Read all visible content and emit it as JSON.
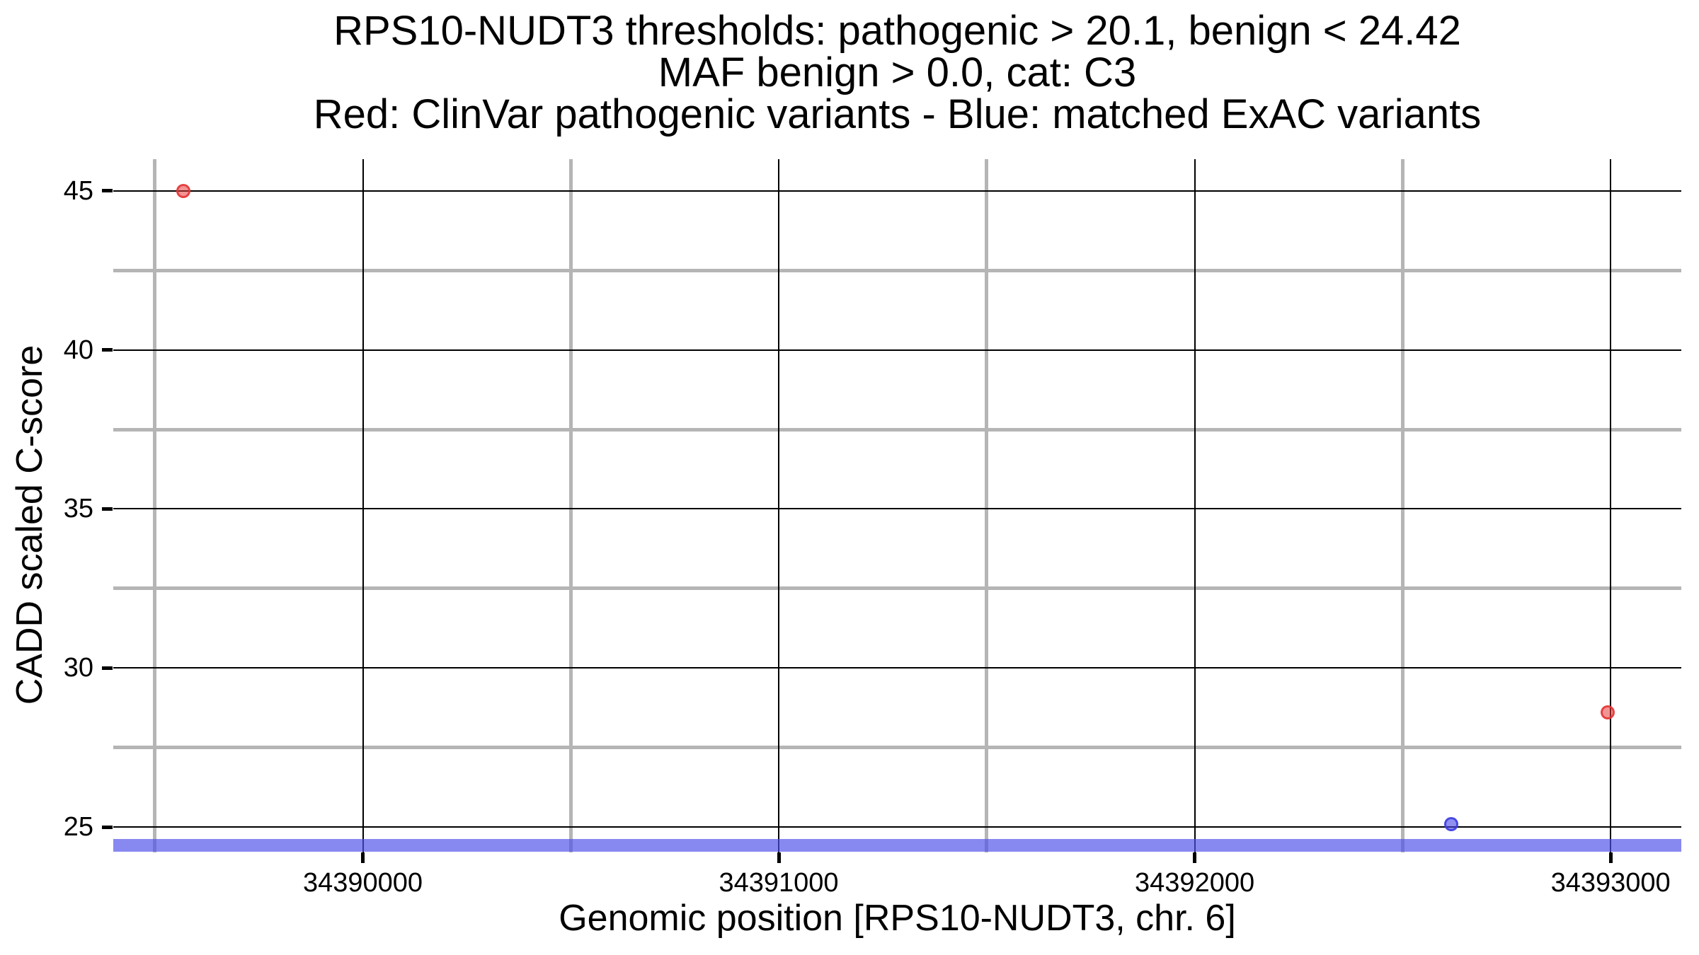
{
  "chart_data": {
    "type": "scatter",
    "titles": [
      "RPS10-NUDT3 thresholds: pathogenic > 20.1, benign < 24.42",
      "MAF benign > 0.0, cat: C3",
      "Red: ClinVar pathogenic variants - Blue: matched ExAC variants"
    ],
    "xlabel": "Genomic position [RPS10-NUDT3, chr. 6]",
    "ylabel": "CADD scaled C-score",
    "xlim": [
      34389400,
      34393170
    ],
    "ylim": [
      24.2,
      46.0
    ],
    "x_ticks": [
      {
        "value": 34390000,
        "label": "34390000"
      },
      {
        "value": 34391000,
        "label": "34391000"
      },
      {
        "value": 34392000,
        "label": "34392000"
      },
      {
        "value": 34393000,
        "label": "34393000"
      }
    ],
    "x_minor_ticks": [
      34389500,
      34390500,
      34391500,
      34392500
    ],
    "y_ticks": [
      {
        "value": 25,
        "label": "25"
      },
      {
        "value": 30,
        "label": "30"
      },
      {
        "value": 35,
        "label": "35"
      },
      {
        "value": 40,
        "label": "40"
      },
      {
        "value": 45,
        "label": "45"
      }
    ],
    "y_minor_ticks": [
      27.5,
      32.5,
      37.5,
      42.5
    ],
    "grid": {
      "major_color": "#000000",
      "major_width": 2,
      "minor_color": "#b5b5b5",
      "minor_width": 5
    },
    "series": [
      {
        "name": "ClinVar pathogenic variants",
        "color_name": "red",
        "fill": "rgba(232,60,60,0.55)",
        "stroke": "rgba(228,50,50,0.85)",
        "points": [
          {
            "x": 34389568,
            "y": 45.0
          },
          {
            "x": 34392993,
            "y": 28.6
          }
        ]
      },
      {
        "name": "matched ExAC variants",
        "color_name": "blue",
        "fill": "rgba(70,70,230,0.6)",
        "stroke": "rgba(60,60,225,0.85)",
        "points": [
          {
            "x": 34392617,
            "y": 25.1
          }
        ]
      }
    ],
    "threshold_line": {
      "y": 24.42,
      "meaning": "benign threshold",
      "color": "rgba(80,80,235,0.68)",
      "thickness": 18
    },
    "thresholds": {
      "pathogenic_gt": 20.1,
      "benign_lt": 24.42,
      "maf_benign_gt": 0.0,
      "category": "C3"
    },
    "legend_position": "none",
    "grid_on": true
  }
}
